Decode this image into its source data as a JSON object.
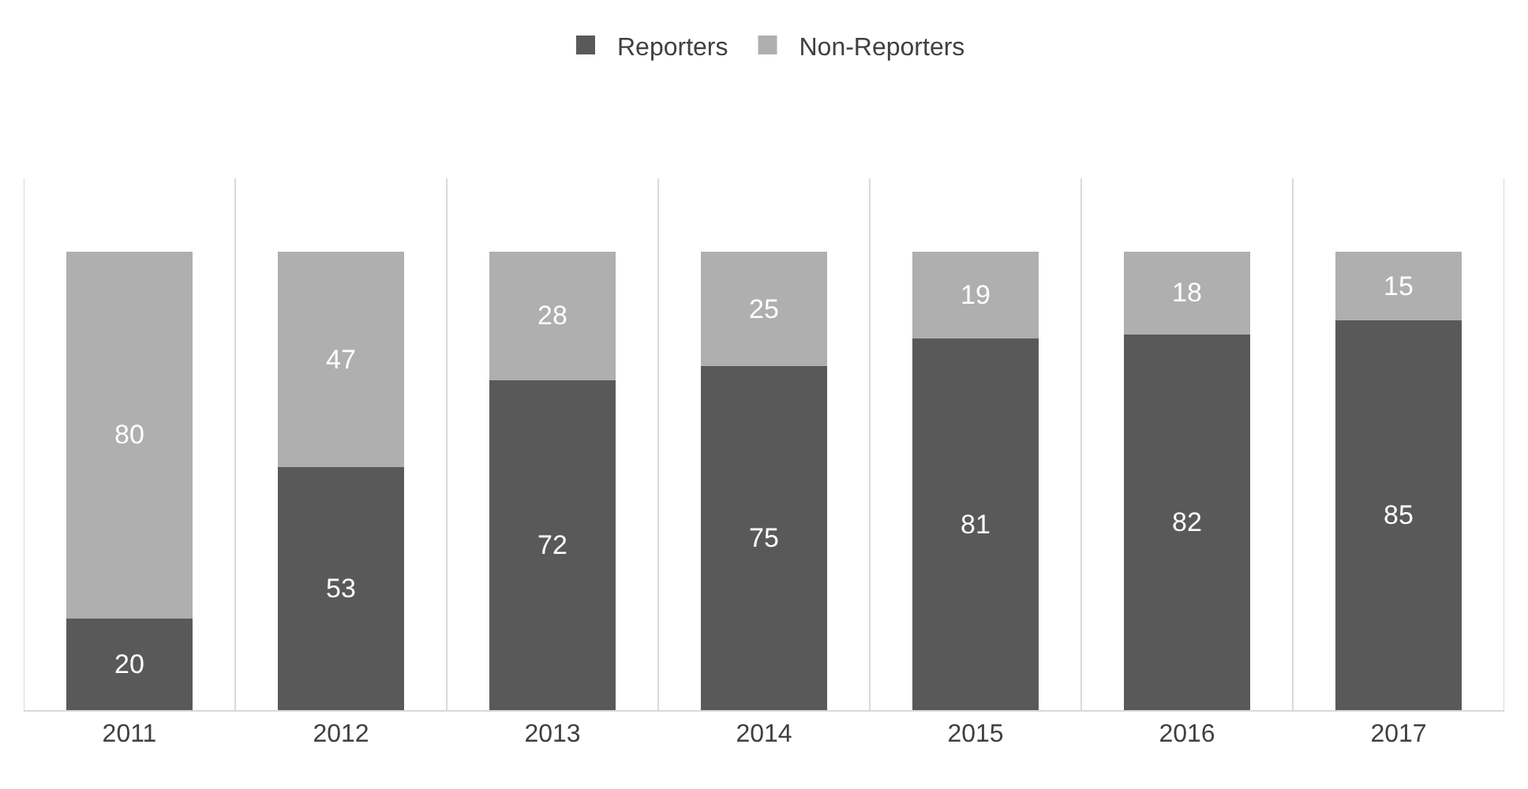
{
  "chart_data": {
    "type": "bar",
    "stacked": true,
    "categories": [
      "2011",
      "2012",
      "2013",
      "2014",
      "2015",
      "2016",
      "2017"
    ],
    "series": [
      {
        "name": "Reporters",
        "color": "#595959",
        "values": [
          20,
          53,
          72,
          75,
          81,
          82,
          85
        ]
      },
      {
        "name": "Non-Reporters",
        "color": "#afafaf",
        "values": [
          80,
          47,
          28,
          25,
          19,
          18,
          15
        ]
      }
    ],
    "data_labels": true,
    "legend": "top",
    "grid": "x",
    "tick_labels": "x"
  }
}
